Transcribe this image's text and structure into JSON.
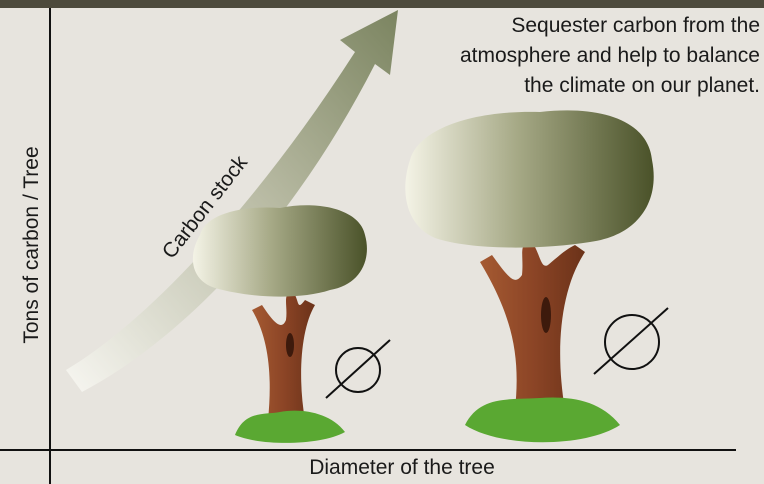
{
  "caption": {
    "lines": [
      "Sequester carbon from the",
      "atmosphere and help to balance",
      "the climate on our planet."
    ]
  },
  "arrow_label": "Carbon stock",
  "y_axis_label": "Tons of carbon / Tree",
  "x_axis_label": "Diameter of the tree"
}
